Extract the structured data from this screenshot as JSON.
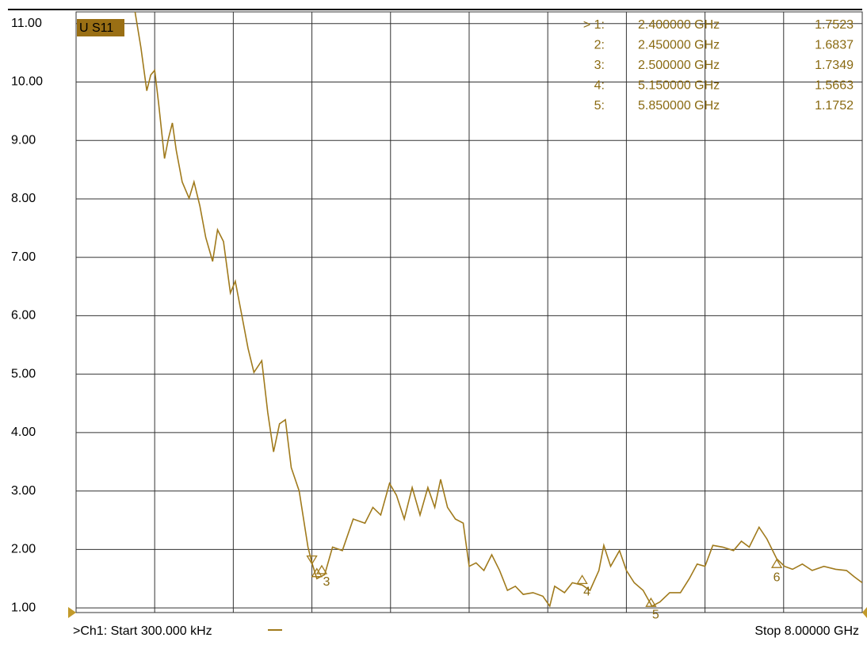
{
  "chart_data": {
    "type": "line",
    "series": [
      {
        "name": "U S11",
        "color": "#a07a1c",
        "values": [
          11.2,
          10.59,
          9.85,
          10.12,
          10.2,
          9.64,
          8.69,
          9.03,
          9.3,
          8.83,
          8.29,
          8.01,
          8.29,
          7.88,
          7.34,
          6.93,
          7.47,
          7.27,
          6.39,
          6.59,
          5.98,
          5.44,
          5.03,
          5.23,
          4.35,
          3.67,
          4.15,
          4.22,
          3.4,
          3.0,
          2.04,
          1.77,
          1.5,
          1.57,
          2.04,
          1.98,
          2.52,
          2.45,
          2.72,
          2.59,
          3.13,
          2.93,
          2.52,
          3.06,
          2.59,
          3.06,
          2.72,
          3.2,
          2.72,
          2.52,
          2.45,
          1.71,
          1.77,
          1.64,
          1.91,
          1.64,
          1.3,
          1.37,
          1.23,
          1.26,
          1.2,
          1.03,
          1.37,
          1.26,
          1.43,
          1.39,
          1.3,
          1.64,
          2.07,
          1.71,
          1.98,
          1.64,
          1.43,
          1.3,
          1.03,
          1.1,
          1.26,
          1.26,
          1.5,
          1.75,
          1.71,
          2.07,
          2.04,
          1.98,
          2.14,
          2.04,
          2.38,
          2.18,
          1.84,
          1.71,
          1.66,
          1.75,
          1.64,
          1.71,
          1.66,
          1.64,
          1.53,
          1.43
        ]
      }
    ],
    "x": [
      0.6,
      0.66,
      0.72,
      0.76,
      0.8,
      0.84,
      0.9,
      0.94,
      0.98,
      1.02,
      1.08,
      1.15,
      1.2,
      1.26,
      1.32,
      1.39,
      1.44,
      1.5,
      1.57,
      1.62,
      1.69,
      1.75,
      1.81,
      1.89,
      1.95,
      2.01,
      2.07,
      2.13,
      2.19,
      2.27,
      2.36,
      2.4,
      2.45,
      2.53,
      2.61,
      2.71,
      2.82,
      2.94,
      3.02,
      3.1,
      3.19,
      3.26,
      3.34,
      3.42,
      3.5,
      3.58,
      3.65,
      3.71,
      3.78,
      3.86,
      3.94,
      4.0,
      4.07,
      4.15,
      4.23,
      4.31,
      4.39,
      4.47,
      4.55,
      4.65,
      4.75,
      4.82,
      4.87,
      4.97,
      5.05,
      5.15,
      5.23,
      5.32,
      5.37,
      5.44,
      5.53,
      5.6,
      5.68,
      5.77,
      5.86,
      5.94,
      6.04,
      6.15,
      6.24,
      6.32,
      6.4,
      6.48,
      6.58,
      6.69,
      6.77,
      6.85,
      6.95,
      7.03,
      7.13,
      7.21,
      7.29,
      7.39,
      7.49,
      7.61,
      7.73,
      7.84,
      7.92,
      8.0
    ],
    "xlim": [
      0.0003,
      8
    ],
    "xticks": [
      0.0003,
      0.8,
      1.6,
      2.4,
      3.2,
      4.0,
      4.8,
      5.6,
      6.4,
      7.2,
      8
    ],
    "ylim": [
      0.92,
      11.2
    ],
    "yticks": [
      {
        "value": 1,
        "label": "1.00"
      },
      {
        "value": 2,
        "label": "2.00"
      },
      {
        "value": 3,
        "label": "3.00"
      },
      {
        "value": 4,
        "label": "4.00"
      },
      {
        "value": 5,
        "label": "5.00"
      },
      {
        "value": 6,
        "label": "6.00"
      },
      {
        "value": 7,
        "label": "7.00"
      },
      {
        "value": 8,
        "label": "8.00"
      },
      {
        "value": 9,
        "label": "9.00"
      },
      {
        "value": 10,
        "label": "10.00"
      },
      {
        "value": 11,
        "label": "11.00"
      }
    ],
    "grid": true,
    "markers": [
      {
        "id": "> 1:",
        "frequency": {
          "value": 2.4,
          "label": "2.400000 GHz"
        },
        "value": 1.7523
      },
      {
        "id": "2:",
        "frequency": {
          "value": 2.45,
          "label": "2.450000 GHz"
        },
        "value": 1.6837
      },
      {
        "id": "3:",
        "frequency": {
          "value": 2.5,
          "label": "2.500000 GHz"
        },
        "value": 1.7349,
        "tag": "3"
      },
      {
        "id": "4:",
        "frequency": {
          "value": 5.15,
          "label": "5.150000 GHz"
        },
        "value": 1.5663,
        "tag": "4"
      },
      {
        "id": "5:",
        "frequency": {
          "value": 5.85,
          "label": "5.850000 GHz"
        },
        "value": 1.1752,
        "tag": "5"
      }
    ],
    "extra_markers": [
      {
        "tag": "6",
        "x": 7.13,
        "y": 1.84
      }
    ],
    "start_label": ">Ch1: Start  300.000 kHz",
    "stop_label": "Stop  8.00000 GHz"
  }
}
